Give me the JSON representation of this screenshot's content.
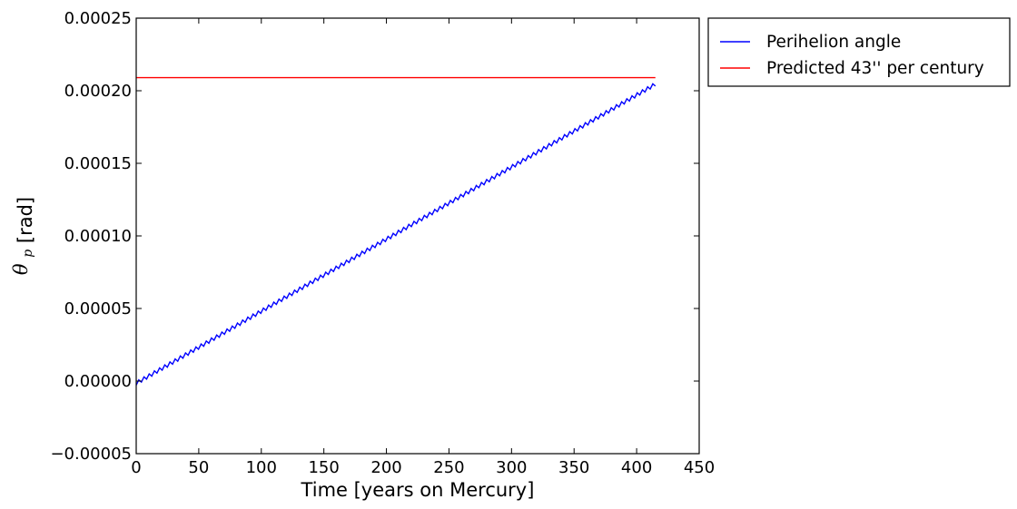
{
  "chart_data": {
    "type": "line",
    "title": "",
    "xlabel": "Time [years on Mercury]",
    "ylabel": {
      "symbol": "θ",
      "subscript": "p",
      "unit": "[rad]"
    },
    "xlim": [
      0,
      450
    ],
    "ylim": [
      -5e-05,
      0.00025
    ],
    "x_ticks": [
      0,
      50,
      100,
      150,
      200,
      250,
      300,
      350,
      400,
      450
    ],
    "y_ticks": [
      -5e-05,
      0,
      5e-05,
      0.0001,
      0.00015,
      0.0002,
      0.00025
    ],
    "x_tick_labels": [
      "0",
      "50",
      "100",
      "150",
      "200",
      "250",
      "300",
      "350",
      "400",
      "450"
    ],
    "y_tick_labels": [
      "−0.00005",
      "0.00000",
      "0.00005",
      "0.00010",
      "0.00015",
      "0.00020",
      "0.00025"
    ],
    "grid": false,
    "legend_position": "outside-top-right",
    "series": [
      {
        "name": "Perihelion angle",
        "color": "#0000ff",
        "kind": "oscillating-line",
        "x_start": 0,
        "x_end": 415,
        "y_start": -1.5e-06,
        "y_end": 0.0002045,
        "oscillation_period": 4.15,
        "oscillation_amplitude": 1.3e-06
      },
      {
        "name": "Predicted 43'' per century",
        "color": "#ff0000",
        "kind": "constant",
        "x": [
          0,
          415
        ],
        "y": [
          0.000209,
          0.000209
        ]
      }
    ]
  }
}
